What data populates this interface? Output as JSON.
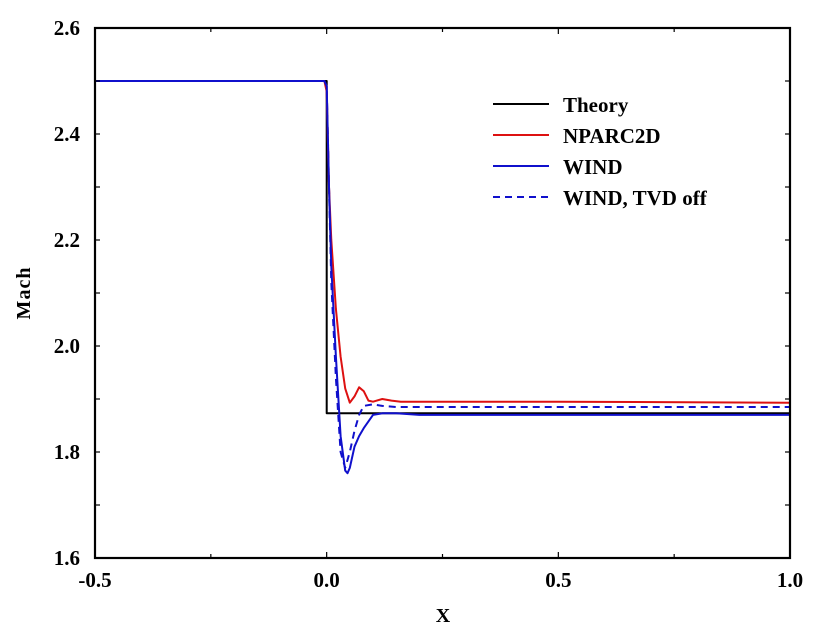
{
  "chart_data": {
    "type": "line",
    "title": "",
    "xlabel": "X",
    "ylabel": "Mach",
    "xlim": [
      -0.5,
      1.0
    ],
    "ylim": [
      1.6,
      2.6
    ],
    "x_ticks": [
      "-0.5",
      "0.0",
      "0.5",
      "1.0"
    ],
    "y_ticks": [
      "1.6",
      "1.8",
      "2.0",
      "2.2",
      "2.4",
      "2.6"
    ],
    "grid": false,
    "legend_position": "upper right",
    "series": [
      {
        "name": "Theory",
        "color": "#000000",
        "style": "solid",
        "x": [
          -0.5,
          0.0,
          0.0,
          1.0
        ],
        "y": [
          2.5,
          2.5,
          1.873,
          1.873
        ]
      },
      {
        "name": "NPARC2D",
        "color": "#dd1111",
        "style": "solid",
        "x": [
          -0.5,
          -0.005,
          0.0,
          0.005,
          0.01,
          0.02,
          0.03,
          0.04,
          0.05,
          0.06,
          0.07,
          0.08,
          0.09,
          0.1,
          0.12,
          0.14,
          0.16,
          0.2,
          0.5,
          1.0
        ],
        "y": [
          2.5,
          2.5,
          2.48,
          2.3,
          2.2,
          2.07,
          1.98,
          1.92,
          1.893,
          1.905,
          1.922,
          1.915,
          1.897,
          1.895,
          1.9,
          1.897,
          1.895,
          1.895,
          1.895,
          1.893
        ]
      },
      {
        "name": "WIND",
        "color": "#1010cc",
        "style": "solid",
        "x": [
          -0.5,
          -0.005,
          0.0,
          0.005,
          0.01,
          0.02,
          0.03,
          0.04,
          0.045,
          0.05,
          0.06,
          0.07,
          0.08,
          0.1,
          0.12,
          0.15,
          0.2,
          0.5,
          1.0
        ],
        "y": [
          2.5,
          2.5,
          2.49,
          2.3,
          2.15,
          1.98,
          1.83,
          1.765,
          1.76,
          1.77,
          1.81,
          1.83,
          1.845,
          1.87,
          1.873,
          1.873,
          1.87,
          1.87,
          1.87
        ]
      },
      {
        "name": "WIND, TVD off",
        "color": "#1010cc",
        "style": "dashed",
        "x": [
          -0.5,
          -0.005,
          0.0,
          0.005,
          0.01,
          0.02,
          0.03,
          0.04,
          0.05,
          0.06,
          0.07,
          0.08,
          0.1,
          0.12,
          0.15,
          0.2,
          0.5,
          1.0
        ],
        "y": [
          2.5,
          2.5,
          2.49,
          2.3,
          2.12,
          1.94,
          1.8,
          1.77,
          1.8,
          1.84,
          1.87,
          1.887,
          1.89,
          1.887,
          1.885,
          1.885,
          1.885,
          1.885
        ]
      }
    ]
  },
  "legend": {
    "items": [
      {
        "label": "Theory",
        "color": "#000000",
        "dash": ""
      },
      {
        "label": "NPARC2D",
        "color": "#dd1111",
        "dash": ""
      },
      {
        "label": "WIND",
        "color": "#1010cc",
        "dash": ""
      },
      {
        "label": "WIND, TVD off",
        "color": "#1010cc",
        "dash": "7,5"
      }
    ]
  },
  "axes": {
    "x_label": "X",
    "y_label": "Mach"
  }
}
